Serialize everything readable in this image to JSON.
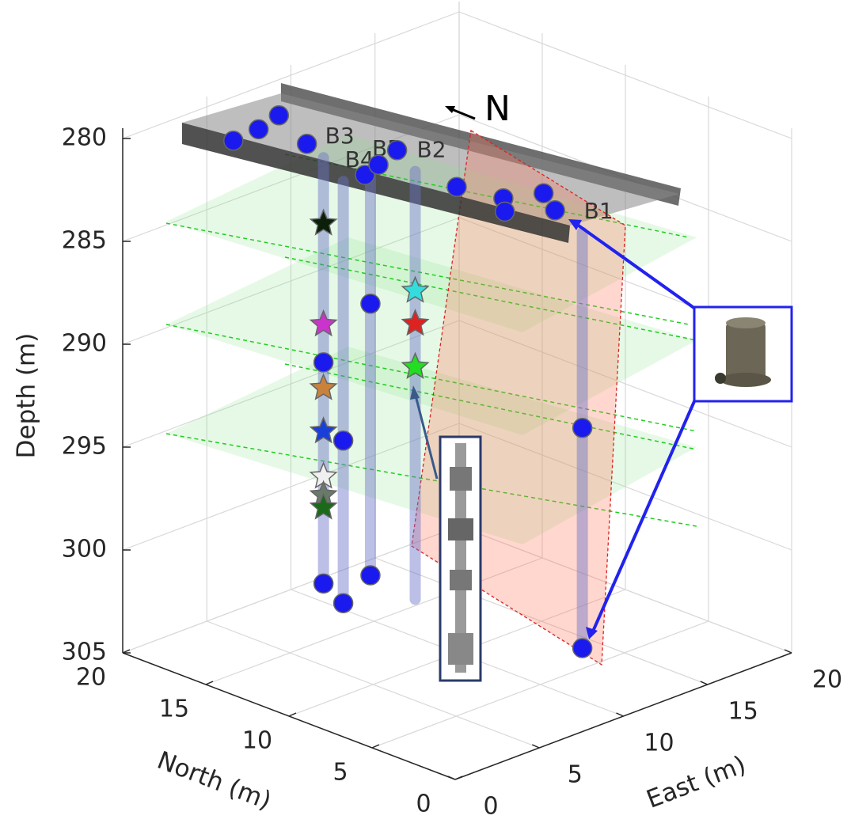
{
  "chart_data": {
    "type": "scatter3d",
    "x_label": "North (m)",
    "y_label": "East (m)",
    "z_label": "Depth (m)",
    "xlim": [
      0,
      20
    ],
    "xticks": [
      0,
      5,
      10,
      15,
      20
    ],
    "ylim": [
      0,
      20
    ],
    "yticks": [
      0,
      5,
      10,
      15,
      20
    ],
    "zlim": [
      279.5,
      305
    ],
    "zticks": [
      280,
      285,
      290,
      295,
      300,
      305
    ],
    "grid": true,
    "north_label": "N",
    "boreholes": [
      {
        "name": "B3",
        "north": 14.6,
        "east": 6.6,
        "top": 281.3,
        "bottom": 302
      },
      {
        "name": "B4",
        "north": 12.45,
        "east": 5.65,
        "top": 281.5,
        "bottom": 302
      },
      {
        "name": "B5",
        "north": 13.85,
        "east": 8.65,
        "top": 282.3,
        "bottom": 302
      },
      {
        "name": "B2",
        "north": 10.6,
        "east": 8.1,
        "top": 281.2,
        "bottom": 302
      },
      {
        "name": "B1",
        "north": 5,
        "east": 12.5,
        "top": 283.8,
        "bottom": 304
      }
    ],
    "points": [
      {
        "north": 18.15,
        "east": 4.75,
        "depth": 281,
        "marker": "circle",
        "color": "#1a1aee"
      },
      {
        "north": 18.3,
        "east": 6.4,
        "depth": 281,
        "marker": "circle",
        "color": "#1a1aee"
      },
      {
        "north": 18.8,
        "east": 8.1,
        "depth": 281,
        "marker": "circle",
        "color": "#1a1aee"
      },
      {
        "north": 15.7,
        "east": 6.7,
        "depth": 281,
        "marker": "circle",
        "color": "#1a1aee"
      },
      {
        "north": 11.5,
        "east": 6.0,
        "depth": 281,
        "marker": "circle",
        "color": "#1a1aee"
      },
      {
        "north": 11.9,
        "east": 7.2,
        "depth": 281,
        "marker": "circle",
        "color": "#1a1aee"
      },
      {
        "north": 12.5,
        "east": 8.9,
        "depth": 281,
        "marker": "circle",
        "color": "#1a1aee"
      },
      {
        "north": 7.8,
        "east": 7.8,
        "depth": 281,
        "marker": "circle",
        "color": "#1a1aee"
      },
      {
        "north": 5.5,
        "east": 8.3,
        "depth": 281,
        "marker": "circle",
        "color": "#1a1aee"
      },
      {
        "north": 4.4,
        "east": 7.3,
        "depth": 281,
        "marker": "circle",
        "color": "#1a1aee"
      },
      {
        "north": 4.7,
        "east": 9.9,
        "depth": 281,
        "marker": "circle",
        "color": "#1a1aee"
      },
      {
        "north": 3.0,
        "east": 8.9,
        "depth": 281,
        "marker": "circle",
        "color": "#1a1aee"
      },
      {
        "north": 14.6,
        "east": 6.6,
        "depth": 284.5,
        "marker": "star",
        "color": "#0a200a"
      },
      {
        "north": 14.6,
        "east": 6.6,
        "depth": 289.4,
        "marker": "star",
        "color": "#cc33cc"
      },
      {
        "north": 14.6,
        "east": 6.6,
        "depth": 291.25,
        "marker": "circle",
        "color": "#1a1aee"
      },
      {
        "north": 14.6,
        "east": 6.6,
        "depth": 292.5,
        "marker": "star",
        "color": "#c8823c"
      },
      {
        "north": 14.6,
        "east": 6.6,
        "depth": 294.6,
        "marker": "star",
        "color": "#1a3fd9"
      },
      {
        "north": 14.6,
        "east": 6.6,
        "depth": 296.8,
        "marker": "star",
        "color": "#f0f0f0"
      },
      {
        "north": 14.6,
        "east": 6.6,
        "depth": 297.7,
        "marker": "star",
        "color": "#6a7a6a"
      },
      {
        "north": 14.6,
        "east": 6.6,
        "depth": 298.3,
        "marker": "star",
        "color": "#1a6a1a"
      },
      {
        "north": 14.6,
        "east": 6.6,
        "depth": 302,
        "marker": "circle",
        "color": "#1a1aee"
      },
      {
        "north": 12.45,
        "east": 5.65,
        "depth": 294.1,
        "marker": "circle",
        "color": "#1a1aee"
      },
      {
        "north": 12.45,
        "east": 5.65,
        "depth": 302,
        "marker": "circle",
        "color": "#1a1aee"
      },
      {
        "north": 13.85,
        "east": 8.65,
        "depth": 288.8,
        "marker": "circle",
        "color": "#1a1aee"
      },
      {
        "north": 13.85,
        "east": 8.65,
        "depth": 302,
        "marker": "circle",
        "color": "#1a1aee"
      },
      {
        "north": 10.6,
        "east": 8.1,
        "depth": 287,
        "marker": "star",
        "color": "#33dddd"
      },
      {
        "north": 10.6,
        "east": 8.1,
        "depth": 288.6,
        "marker": "star",
        "color": "#dd2222"
      },
      {
        "north": 10.6,
        "east": 8.1,
        "depth": 290.7,
        "marker": "star",
        "color": "#22dd22"
      },
      {
        "north": 5,
        "east": 12.5,
        "depth": 293.3,
        "marker": "circle",
        "color": "#1a1aee"
      },
      {
        "north": 5,
        "east": 12.5,
        "depth": 304,
        "marker": "circle",
        "color": "#1a1aee"
      }
    ]
  }
}
